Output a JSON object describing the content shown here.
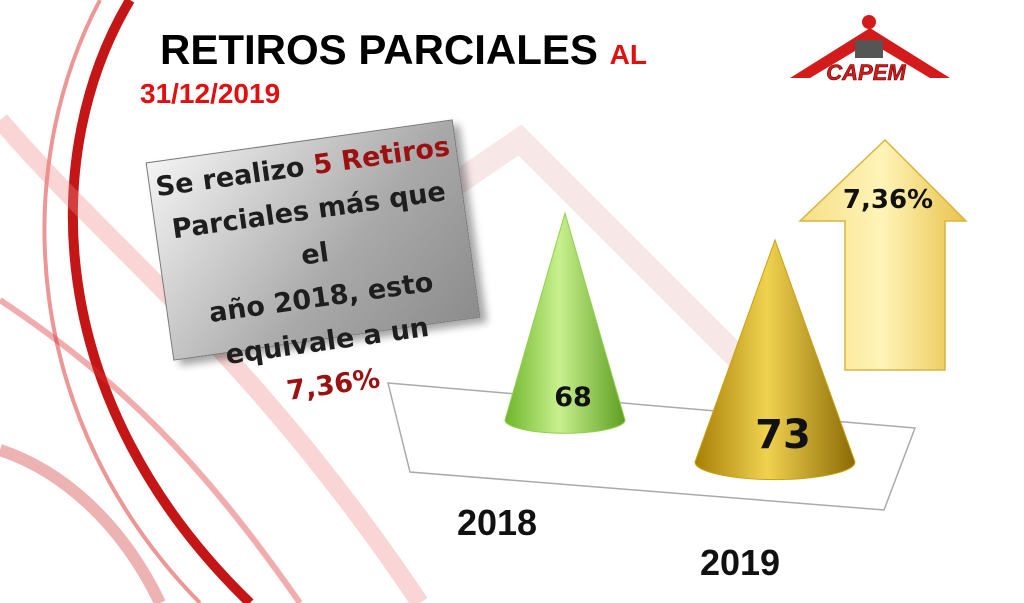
{
  "header": {
    "title": "RETIROS PARCIALES",
    "title_suffix": "AL",
    "date": "31/12/2019",
    "logo": "CAPEM"
  },
  "callout": [
    {
      "text": "Se realizo",
      "color": "#1e1e1e"
    },
    {
      "text": "5 Retiros",
      "color": "#9b1010"
    },
    {
      "text": "Parciales  más que el",
      "color": "#1e1e1e"
    },
    {
      "text": "año 2018, esto",
      "color": "#1e1e1e"
    },
    {
      "text": "equivale a un",
      "color": "#1e1e1e"
    },
    {
      "text": "7,36%",
      "color": "#9b1010"
    }
  ],
  "arrow_label": "7,36%",
  "chart_data": {
    "type": "cone",
    "categories": [
      "2018",
      "2019"
    ],
    "values": [
      68,
      73
    ],
    "colors": [
      "#8fd14a",
      "#c9a10e"
    ]
  }
}
